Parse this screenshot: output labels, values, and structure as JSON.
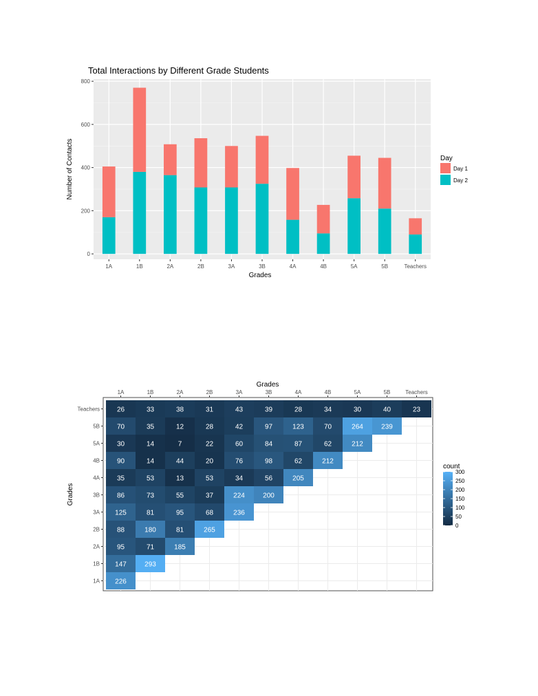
{
  "chart_data": [
    {
      "type": "bar",
      "stacked": true,
      "title": "Total Interactions by Different Grade Students",
      "xlabel": "Grades",
      "ylabel": "Number of Contacts",
      "categories": [
        "1A",
        "1B",
        "2A",
        "2B",
        "3A",
        "3B",
        "4A",
        "4B",
        "5A",
        "5B",
        "Teachers"
      ],
      "yticks": [
        0,
        200,
        400,
        600,
        800
      ],
      "ylim": [
        -25,
        810
      ],
      "grid": true,
      "legend": {
        "title": "Day",
        "position": "right"
      },
      "series": [
        {
          "name": "Day 2",
          "color": "#00BFC4",
          "values": [
            170,
            380,
            365,
            308,
            308,
            325,
            158,
            95,
            258,
            210,
            90
          ]
        },
        {
          "name": "Day 1",
          "color": "#F8766D",
          "values": [
            235,
            390,
            143,
            228,
            192,
            222,
            240,
            132,
            197,
            235,
            75
          ]
        }
      ]
    },
    {
      "type": "heatmap",
      "xlabel": "Grades",
      "ylabel": "Grades",
      "x_categories": [
        "1A",
        "1B",
        "2A",
        "2B",
        "3A",
        "3B",
        "4A",
        "4B",
        "5A",
        "5B",
        "Teachers"
      ],
      "y_categories": [
        "1A",
        "1B",
        "2A",
        "2B",
        "3A",
        "3B",
        "4A",
        "4B",
        "5A",
        "5B",
        "Teachers"
      ],
      "legend": {
        "title": "count",
        "position": "right",
        "ticks": [
          0,
          50,
          100,
          150,
          200,
          250,
          300
        ],
        "low_color": "#132B43",
        "high_color": "#56B1F7",
        "range": [
          0,
          300
        ]
      },
      "rows": {
        "1A": [
          226
        ],
        "1B": [
          147,
          293
        ],
        "2A": [
          95,
          71,
          185
        ],
        "2B": [
          88,
          180,
          81,
          265
        ],
        "3A": [
          125,
          81,
          95,
          68,
          236
        ],
        "3B": [
          86,
          73,
          55,
          37,
          224,
          200
        ],
        "4A": [
          35,
          53,
          13,
          53,
          34,
          56,
          205
        ],
        "4B": [
          90,
          14,
          44,
          20,
          76,
          98,
          62,
          212
        ],
        "5A": [
          30,
          14,
          7,
          22,
          60,
          84,
          87,
          62,
          212
        ],
        "5B": [
          70,
          35,
          12,
          28,
          42,
          97,
          123,
          70,
          264,
          239
        ],
        "Teachers": [
          26,
          33,
          38,
          31,
          43,
          39,
          28,
          34,
          30,
          40,
          23
        ]
      }
    }
  ]
}
